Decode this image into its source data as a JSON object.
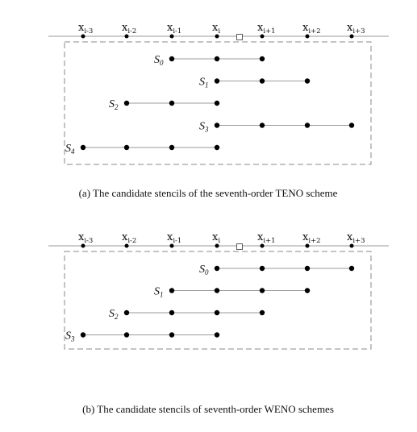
{
  "panels": [
    {
      "id": "a",
      "caption": "(a)  The candidate stencils of the seventh-order TENO scheme",
      "nodes": [
        {
          "base": "x",
          "sub": "i-3"
        },
        {
          "base": "x",
          "sub": "i-2"
        },
        {
          "base": "x",
          "sub": "i-1"
        },
        {
          "base": "x",
          "sub": "i"
        },
        {
          "base": "x",
          "sub": "i+1"
        },
        {
          "base": "x",
          "sub": "i+2"
        },
        {
          "base": "x",
          "sub": "i+3"
        }
      ],
      "stencils": [
        {
          "base": "S",
          "sub": "0",
          "from": 3,
          "to": 5
        },
        {
          "base": "S",
          "sub": "1",
          "from": 4,
          "to": 6
        },
        {
          "base": "S",
          "sub": "2",
          "from": 2,
          "to": 4
        },
        {
          "base": "S",
          "sub": "3",
          "from": 4,
          "to": 7
        },
        {
          "base": "S",
          "sub": "4",
          "from": 1,
          "to": 4
        }
      ]
    },
    {
      "id": "b",
      "caption": "(b)  The candidate stencils of seventh-order WENO schemes",
      "nodes": [
        {
          "base": "x",
          "sub": "i-3"
        },
        {
          "base": "x",
          "sub": "i-2"
        },
        {
          "base": "x",
          "sub": "i-1"
        },
        {
          "base": "x",
          "sub": "i"
        },
        {
          "base": "x",
          "sub": "i+1"
        },
        {
          "base": "x",
          "sub": "i+2"
        },
        {
          "base": "x",
          "sub": "i+3"
        }
      ],
      "stencils": [
        {
          "base": "S",
          "sub": "0",
          "from": 4,
          "to": 7
        },
        {
          "base": "S",
          "sub": "1",
          "from": 3,
          "to": 6
        },
        {
          "base": "S",
          "sub": "2",
          "from": 2,
          "to": 5
        },
        {
          "base": "S",
          "sub": "3",
          "from": 1,
          "to": 4
        }
      ]
    }
  ],
  "colors": {
    "line": "#9a9a9a",
    "dash": "#888888",
    "dot": "#000000",
    "text": "#111111"
  }
}
